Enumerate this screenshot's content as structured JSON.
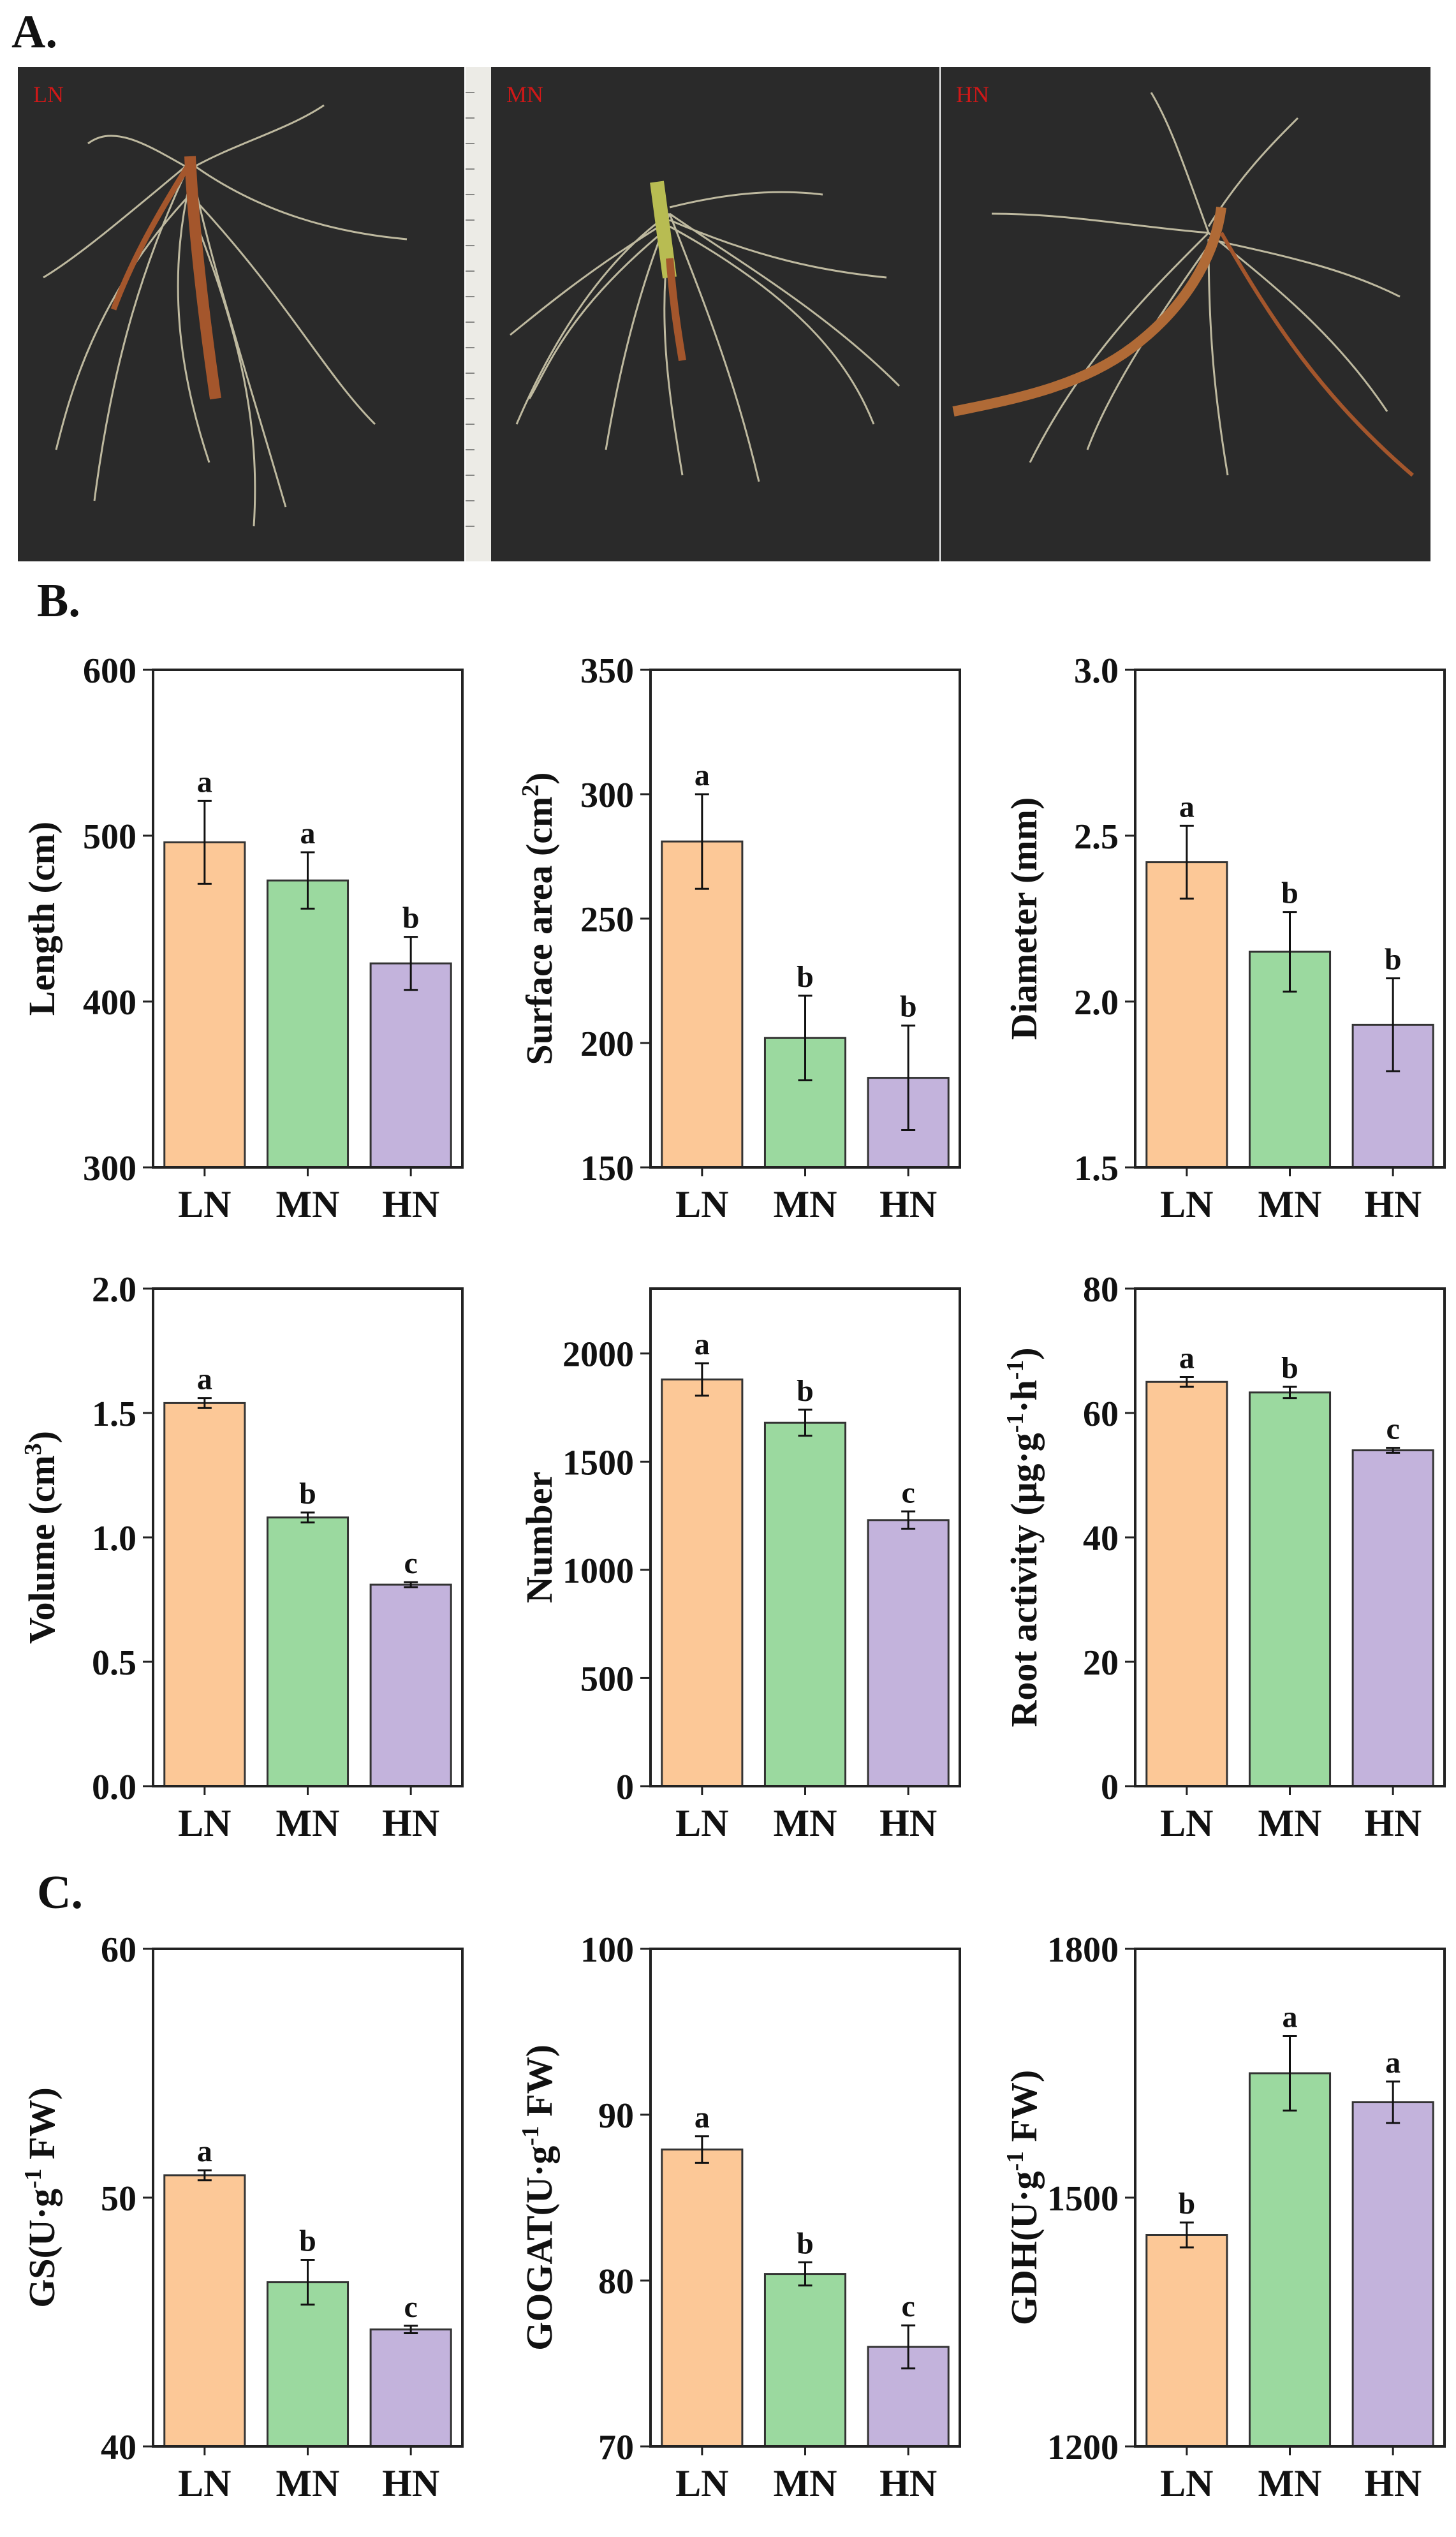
{
  "panels": {
    "a": "A.",
    "b": "B.",
    "c": "C."
  },
  "photos": [
    {
      "label": "LN",
      "label_color": "#d01818"
    },
    {
      "label": "MN",
      "label_color": "#d01818"
    },
    {
      "label": "HN",
      "label_color": "#d01818"
    }
  ],
  "colors": {
    "LN": "#fcc897",
    "MN": "#9bd99f",
    "HN": "#c3b3dc",
    "photo_background": "#2a2a2a"
  },
  "chart_data": [
    {
      "type": "bar",
      "ylabel": "Length (cm)",
      "ylim": [
        300,
        600
      ],
      "yticks": [
        300,
        400,
        500,
        600
      ],
      "categories": [
        "LN",
        "MN",
        "HN"
      ],
      "values": [
        496,
        473,
        423
      ],
      "errors": [
        25,
        17,
        16
      ],
      "letters": [
        "a",
        "a",
        "b"
      ]
    },
    {
      "type": "bar",
      "ylabel": "Surface area (cm2)",
      "ylim": [
        150,
        350
      ],
      "yticks": [
        150,
        200,
        250,
        300,
        350
      ],
      "categories": [
        "LN",
        "MN",
        "HN"
      ],
      "values": [
        281,
        202,
        186
      ],
      "errors": [
        19,
        17,
        21
      ],
      "letters": [
        "a",
        "b",
        "b"
      ]
    },
    {
      "type": "bar",
      "ylabel": "Diameter (mm)",
      "ylim": [
        1.5,
        3.0
      ],
      "yticks": [
        "1.5",
        "2.0",
        "2.5",
        "3.0"
      ],
      "categories": [
        "LN",
        "MN",
        "HN"
      ],
      "values": [
        2.42,
        2.15,
        1.93
      ],
      "errors": [
        0.11,
        0.12,
        0.14
      ],
      "letters": [
        "a",
        "b",
        "b"
      ]
    },
    {
      "type": "bar",
      "ylabel": "Volume (cm3)",
      "ylim": [
        0,
        2.0
      ],
      "yticks": [
        "0.0",
        "0.5",
        "1.0",
        "1.5",
        "2.0"
      ],
      "categories": [
        "LN",
        "MN",
        "HN"
      ],
      "values": [
        1.54,
        1.08,
        0.81
      ],
      "errors": [
        0.02,
        0.02,
        0.01
      ],
      "letters": [
        "a",
        "b",
        "c"
      ]
    },
    {
      "type": "bar",
      "ylabel": "Number",
      "ylim": [
        0,
        2300
      ],
      "yticks": [
        0,
        500,
        1000,
        1500,
        2000
      ],
      "categories": [
        "LN",
        "MN",
        "HN"
      ],
      "values": [
        1880,
        1680,
        1230
      ],
      "errors": [
        75,
        60,
        40
      ],
      "letters": [
        "a",
        "b",
        "c"
      ]
    },
    {
      "type": "bar",
      "ylabel": "Root activity (μg·g-1·h-1)",
      "ylim": [
        0,
        80
      ],
      "yticks": [
        0,
        20,
        40,
        60,
        80
      ],
      "categories": [
        "LN",
        "MN",
        "HN"
      ],
      "values": [
        65,
        63.3,
        54
      ],
      "errors": [
        0.8,
        0.9,
        0.4
      ],
      "letters": [
        "a",
        "b",
        "c"
      ]
    },
    {
      "type": "bar",
      "ylabel": "GS(U·g-1 FW)",
      "ylim": [
        40,
        60
      ],
      "yticks": [
        40,
        50,
        60
      ],
      "categories": [
        "LN",
        "MN",
        "HN"
      ],
      "values": [
        50.9,
        46.6,
        44.7
      ],
      "errors": [
        0.2,
        0.9,
        0.15
      ],
      "letters": [
        "a",
        "b",
        "c"
      ]
    },
    {
      "type": "bar",
      "ylabel": "GOGAT(U·g-1 FW)",
      "ylim": [
        70,
        100
      ],
      "yticks": [
        70,
        80,
        90,
        100
      ],
      "categories": [
        "LN",
        "MN",
        "HN"
      ],
      "values": [
        87.9,
        80.4,
        76.0
      ],
      "errors": [
        0.8,
        0.7,
        1.3
      ],
      "letters": [
        "a",
        "b",
        "c"
      ]
    },
    {
      "type": "bar",
      "ylabel": "GDH(U·g-1 FW)",
      "ylim": [
        1200,
        1800
      ],
      "yticks": [
        1200,
        1500,
        1800
      ],
      "categories": [
        "LN",
        "MN",
        "HN"
      ],
      "values": [
        1455,
        1650,
        1615
      ],
      "errors": [
        15,
        45,
        25
      ],
      "letters": [
        "b",
        "a",
        "a"
      ]
    }
  ]
}
